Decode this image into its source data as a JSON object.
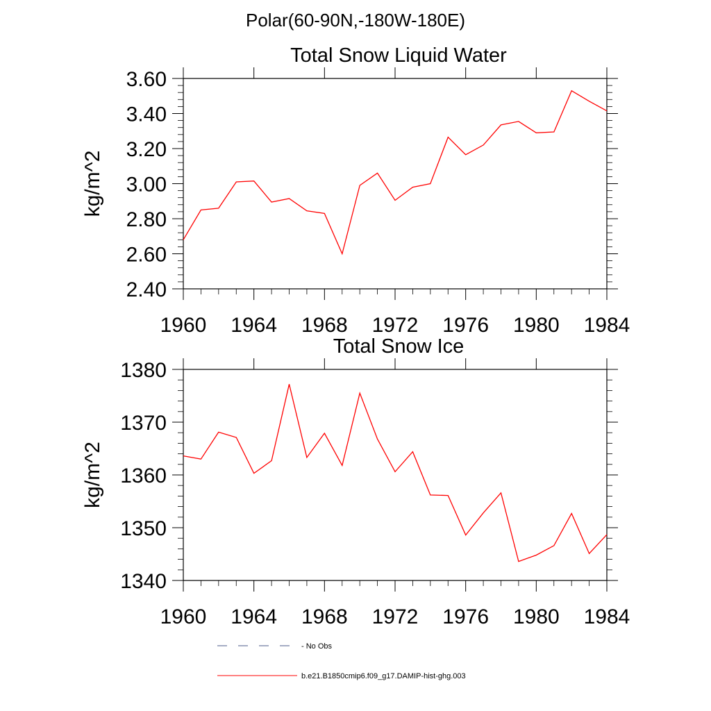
{
  "figure": {
    "suptitle": "Polar(60-90N,-180W-180E)"
  },
  "chart_data": [
    {
      "type": "line",
      "title": "Total Snow Liquid Water",
      "xlabel": "",
      "ylabel": "kg/m^2",
      "xlim": [
        1960,
        1984
      ],
      "ylim": [
        2.4,
        3.6
      ],
      "xticks": [
        1960,
        1964,
        1968,
        1972,
        1976,
        1980,
        1984
      ],
      "xtick_labels": [
        "1960",
        "1964",
        "1968",
        "1972",
        "1976",
        "1980",
        "1984"
      ],
      "yticks": [
        2.4,
        2.6,
        2.8,
        3.0,
        3.2,
        3.4,
        3.6
      ],
      "ytick_labels": [
        "2.40",
        "2.60",
        "2.80",
        "3.00",
        "3.20",
        "3.40",
        "3.60"
      ],
      "grid": false,
      "series": [
        {
          "name": "b.e21.B1850cmip6.f09_g17.DAMIP-hist-ghg.003",
          "color": "#ff0000",
          "x": [
            1960,
            1961,
            1962,
            1963,
            1964,
            1965,
            1966,
            1967,
            1968,
            1969,
            1970,
            1971,
            1972,
            1973,
            1974,
            1975,
            1976,
            1977,
            1978,
            1979,
            1980,
            1981,
            1982,
            1983,
            1984
          ],
          "y": [
            2.68,
            2.85,
            2.86,
            3.01,
            3.015,
            2.895,
            2.915,
            2.845,
            2.83,
            2.6,
            2.99,
            3.06,
            2.905,
            2.98,
            3.0,
            3.265,
            3.165,
            3.22,
            3.335,
            3.355,
            3.29,
            3.295,
            3.53,
            3.47,
            3.415
          ]
        }
      ]
    },
    {
      "type": "line",
      "title": "Total Snow Ice",
      "xlabel": "",
      "ylabel": "kg/m^2",
      "xlim": [
        1960,
        1984
      ],
      "ylim": [
        1340,
        1380
      ],
      "xticks": [
        1960,
        1964,
        1968,
        1972,
        1976,
        1980,
        1984
      ],
      "xtick_labels": [
        "1960",
        "1964",
        "1968",
        "1972",
        "1976",
        "1980",
        "1984"
      ],
      "yticks": [
        1340,
        1350,
        1360,
        1370,
        1380
      ],
      "ytick_labels": [
        "1340",
        "1350",
        "1360",
        "1370",
        "1380"
      ],
      "grid": false,
      "series": [
        {
          "name": "b.e21.B1850cmip6.f09_g17.DAMIP-hist-ghg.003",
          "color": "#ff0000",
          "x": [
            1960,
            1961,
            1962,
            1963,
            1964,
            1965,
            1966,
            1967,
            1968,
            1969,
            1970,
            1971,
            1972,
            1973,
            1974,
            1975,
            1976,
            1977,
            1978,
            1979,
            1980,
            1981,
            1982,
            1983,
            1984
          ],
          "y": [
            1363.6,
            1363.0,
            1368.1,
            1367.1,
            1360.3,
            1362.7,
            1377.2,
            1363.3,
            1367.9,
            1361.8,
            1375.5,
            1366.8,
            1360.6,
            1364.4,
            1356.2,
            1356.1,
            1348.6,
            1352.8,
            1356.6,
            1343.6,
            1344.8,
            1346.6,
            1352.7,
            1345.1,
            1348.7
          ]
        }
      ]
    }
  ],
  "legend": {
    "placement": "bottom-left",
    "entries": [
      {
        "label": "No Obs",
        "color": "#4a5a8a",
        "style": "dashed"
      },
      {
        "label": "b.e21.B1850cmip6.f09_g17.DAMIP-hist-ghg.003",
        "color": "#ff0000",
        "style": "solid"
      }
    ]
  }
}
